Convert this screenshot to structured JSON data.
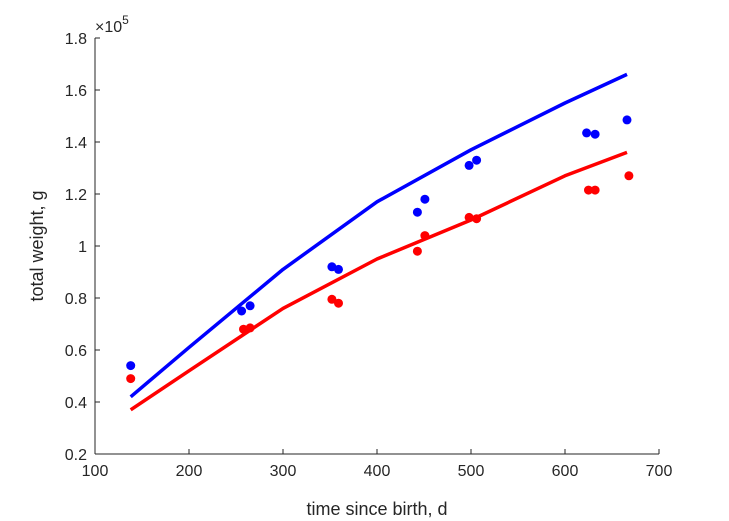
{
  "chart_data": {
    "type": "scatter",
    "xlabel": "time since birth, d",
    "ylabel": "total weight, g",
    "xlim": [
      100,
      700
    ],
    "ylim": [
      0.2,
      1.8
    ],
    "y_multiplier_base": "×10",
    "y_multiplier_exp": "5",
    "xticks": [
      100,
      200,
      300,
      400,
      500,
      600,
      700
    ],
    "yticks": [
      0.2,
      0.4,
      0.6,
      0.8,
      1.0,
      1.2,
      1.4,
      1.6,
      1.8
    ],
    "xtick_labels": [
      "100",
      "200",
      "300",
      "400",
      "500",
      "600",
      "700"
    ],
    "ytick_labels": [
      "0.2",
      "0.4",
      "0.6",
      "0.8",
      "1",
      "1.2",
      "1.4",
      "1.6",
      "1.8"
    ],
    "grid": false,
    "series": [
      {
        "color": "#0000ff",
        "points": [
          [
            138,
            0.54
          ],
          [
            256,
            0.75
          ],
          [
            265,
            0.77
          ],
          [
            352,
            0.92
          ],
          [
            359,
            0.91
          ],
          [
            443,
            1.13
          ],
          [
            451,
            1.18
          ],
          [
            498,
            1.31
          ],
          [
            506,
            1.33
          ],
          [
            623,
            1.435
          ],
          [
            632,
            1.43
          ],
          [
            666,
            1.485
          ]
        ],
        "fit": [
          [
            138,
            0.42
          ],
          [
            200,
            0.61
          ],
          [
            300,
            0.91
          ],
          [
            400,
            1.17
          ],
          [
            500,
            1.37
          ],
          [
            600,
            1.55
          ],
          [
            666,
            1.66
          ]
        ]
      },
      {
        "color": "#ff0000",
        "points": [
          [
            138,
            0.49
          ],
          [
            258,
            0.68
          ],
          [
            265,
            0.685
          ],
          [
            352,
            0.795
          ],
          [
            359,
            0.78
          ],
          [
            443,
            0.98
          ],
          [
            451,
            1.04
          ],
          [
            498,
            1.11
          ],
          [
            506,
            1.105
          ],
          [
            625,
            1.215
          ],
          [
            632,
            1.215
          ],
          [
            668,
            1.27
          ]
        ],
        "fit": [
          [
            138,
            0.37
          ],
          [
            200,
            0.52
          ],
          [
            300,
            0.76
          ],
          [
            400,
            0.95
          ],
          [
            500,
            1.1
          ],
          [
            600,
            1.27
          ],
          [
            666,
            1.36
          ]
        ]
      }
    ]
  }
}
